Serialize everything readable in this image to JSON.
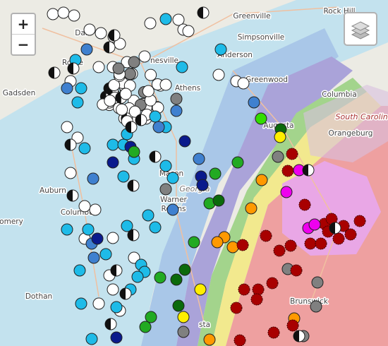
{
  "map": {
    "controls": {
      "zoom_in": "+",
      "zoom_out": "−"
    },
    "labels": [
      "Greenville",
      "Rock Hill",
      "Simpsonville",
      "Anderson",
      "Greenwood",
      "Columbia",
      "South Carolina",
      "Orangeburg",
      "Augusta",
      "Athens",
      "Gadsden",
      "Rome",
      "Dal",
      "nesville",
      "Macon",
      "Georgia",
      "Warner",
      "Robins",
      "Auburn",
      "Columbus",
      "omery",
      "Dothan",
      "Brunswick",
      "sta"
    ]
  }
}
